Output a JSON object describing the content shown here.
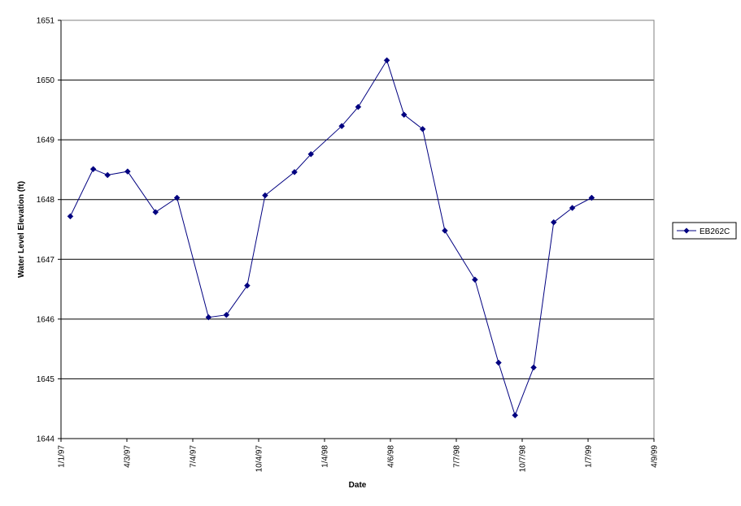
{
  "chart_data": {
    "type": "line",
    "title": "",
    "xlabel": "Date",
    "ylabel": "Water Level Elevation (ft)",
    "ylim": [
      1644,
      1651
    ],
    "yticks": [
      1644,
      1645,
      1646,
      1647,
      1648,
      1649,
      1650,
      1651
    ],
    "xlim": [
      "1997-01-01",
      "1999-04-09"
    ],
    "xticks": [
      {
        "date": "1997-01-01",
        "label": "1/1/97"
      },
      {
        "date": "1997-04-03",
        "label": "4/3/97"
      },
      {
        "date": "1997-07-04",
        "label": "7/4/97"
      },
      {
        "date": "1997-10-04",
        "label": "10/4/97"
      },
      {
        "date": "1998-01-04",
        "label": "1/4/98"
      },
      {
        "date": "1998-04-06",
        "label": "4/6/98"
      },
      {
        "date": "1998-07-07",
        "label": "7/7/98"
      },
      {
        "date": "1998-10-07",
        "label": "10/7/98"
      },
      {
        "date": "1999-01-07",
        "label": "1/7/99"
      },
      {
        "date": "1999-04-09",
        "label": "4/9/99"
      }
    ],
    "grid": {
      "horizontal": true,
      "vertical": false
    },
    "legend": {
      "position": "right"
    },
    "series": [
      {
        "name": "EB262C",
        "color": "#000080",
        "marker": "diamond",
        "points": [
          {
            "x": "1997-01-14",
            "y": 1647.72
          },
          {
            "x": "1997-02-15",
            "y": 1648.51
          },
          {
            "x": "1997-03-07",
            "y": 1648.41
          },
          {
            "x": "1997-04-04",
            "y": 1648.47
          },
          {
            "x": "1997-05-13",
            "y": 1647.79
          },
          {
            "x": "1997-06-12",
            "y": 1648.03
          },
          {
            "x": "1997-07-26",
            "y": 1646.03
          },
          {
            "x": "1997-08-20",
            "y": 1646.07
          },
          {
            "x": "1997-09-18",
            "y": 1646.56
          },
          {
            "x": "1997-10-13",
            "y": 1648.07
          },
          {
            "x": "1997-11-23",
            "y": 1648.46
          },
          {
            "x": "1997-12-16",
            "y": 1648.76
          },
          {
            "x": "1998-01-28",
            "y": 1649.23
          },
          {
            "x": "1998-02-20",
            "y": 1649.55
          },
          {
            "x": "1998-04-01",
            "y": 1650.33
          },
          {
            "x": "1998-04-25",
            "y": 1649.42
          },
          {
            "x": "1998-05-21",
            "y": 1649.18
          },
          {
            "x": "1998-06-21",
            "y": 1647.48
          },
          {
            "x": "1998-08-02",
            "y": 1646.66
          },
          {
            "x": "1998-09-04",
            "y": 1645.27
          },
          {
            "x": "1998-09-27",
            "y": 1644.39
          },
          {
            "x": "1998-10-23",
            "y": 1645.19
          },
          {
            "x": "1998-11-20",
            "y": 1647.62
          },
          {
            "x": "1998-12-16",
            "y": 1647.86
          },
          {
            "x": "1999-01-12",
            "y": 1648.03
          }
        ]
      }
    ]
  }
}
